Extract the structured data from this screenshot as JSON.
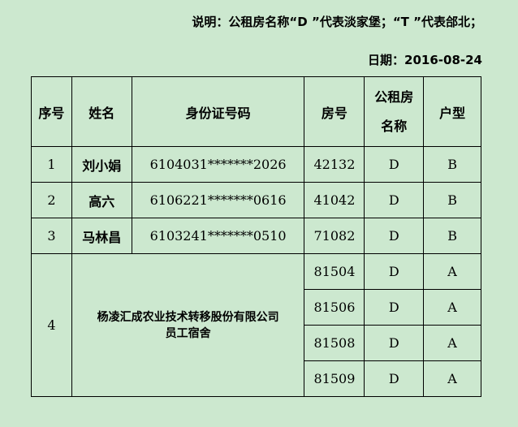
{
  "note": "说明：公租房名称“D ”代表淡家堡；“T ”代表郃北；",
  "date": "日期：2016-08-24",
  "headers": {
    "index": "序号",
    "name": "姓名",
    "id": "身份证号码",
    "room": "房号",
    "housing_line1": "公租房",
    "housing_line2": "名称",
    "type": "户型"
  },
  "rows": [
    {
      "index": "1",
      "name": "刘小娟",
      "id": "6104031*******2026",
      "room": "42132",
      "housing": "D",
      "type": "B"
    },
    {
      "index": "2",
      "name": "高六",
      "id": "6106221*******0616",
      "room": "41042",
      "housing": "D",
      "type": "B"
    },
    {
      "index": "3",
      "name": "马林昌",
      "id": "6103241*******0510",
      "room": "71082",
      "housing": "D",
      "type": "B"
    }
  ],
  "group": {
    "index": "4",
    "company_line1": "杨凌汇成农业技术转移股份有限公司",
    "company_line2": "员工宿舍",
    "rooms": [
      {
        "room": "81504",
        "housing": "D",
        "type": "A"
      },
      {
        "room": "81506",
        "housing": "D",
        "type": "A"
      },
      {
        "room": "81508",
        "housing": "D",
        "type": "A"
      },
      {
        "room": "81509",
        "housing": "D",
        "type": "A"
      }
    ]
  }
}
